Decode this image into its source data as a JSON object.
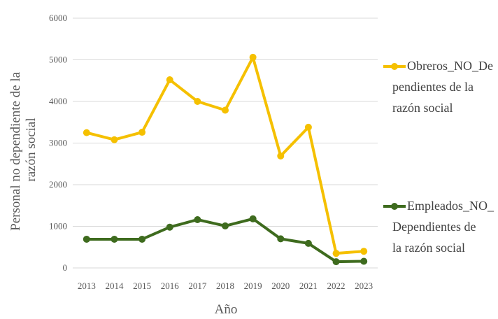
{
  "chart_data": {
    "type": "line",
    "title": "",
    "xlabel": "Año",
    "ylabel_lines": [
      "Personal no dependiente de la",
      "razón social"
    ],
    "ylim": [
      0,
      6000
    ],
    "yticks": [
      "0",
      "1000",
      "2000",
      "3000",
      "4000",
      "5000",
      "6000"
    ],
    "categories": [
      "2013",
      "2014",
      "2015",
      "2016",
      "2017",
      "2018",
      "2019",
      "2020",
      "2021",
      "2022",
      "2023"
    ],
    "grid": true,
    "legend_position": "right",
    "series": [
      {
        "name_lines": [
          "Obreros_NO_De",
          "pendientes de la",
          "razón social"
        ],
        "color": "#f5c000",
        "values": [
          3250,
          3080,
          3260,
          4520,
          4000,
          3790,
          5060,
          2690,
          3380,
          350,
          400
        ]
      },
      {
        "name_lines": [
          "Empleados_NO_",
          "Dependientes de",
          "la razón social"
        ],
        "color": "#3e6b1e",
        "values": [
          690,
          690,
          690,
          980,
          1160,
          1010,
          1180,
          700,
          590,
          150,
          160
        ]
      }
    ]
  }
}
